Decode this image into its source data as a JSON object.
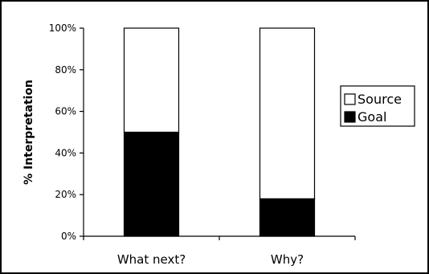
{
  "chart_data": {
    "type": "bar",
    "stacked": true,
    "categories": [
      "What next?",
      "Why?"
    ],
    "series": [
      {
        "name": "Goal",
        "values": [
          50,
          18
        ],
        "color": "#000000"
      },
      {
        "name": "Source",
        "values": [
          50,
          82
        ],
        "color": "#ffffff"
      }
    ],
    "ylabel": "% Interpretation",
    "xlabel": "",
    "ylim": [
      0,
      100
    ],
    "yticks": [
      "0%",
      "20%",
      "40%",
      "60%",
      "80%",
      "100%"
    ],
    "legend": {
      "position": "right",
      "entries": [
        "Source",
        "Goal"
      ]
    },
    "grid": false
  }
}
